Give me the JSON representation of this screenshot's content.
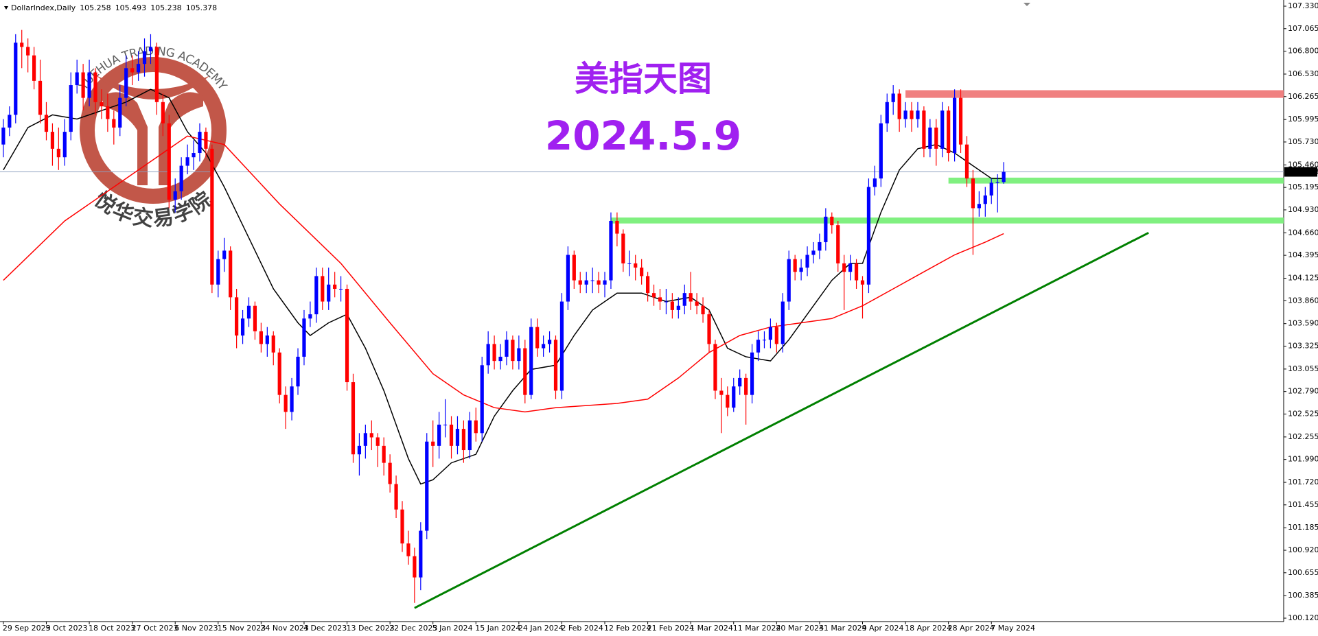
{
  "chart_data": {
    "type": "candlestick",
    "symbol": "DollarIndex,Daily",
    "title": "美指天图",
    "subtitle": "2024.5.9",
    "watermark": {
      "top": "YUEHUA TRADING ACADEMY",
      "bottom": "悦华交易学院"
    },
    "up_color": "#0000ff",
    "down_color": "#ff0000",
    "categories": [
      "29 Sep 2023",
      null,
      null,
      null,
      null,
      null,
      null,
      "9 Oct 2023",
      null,
      null,
      null,
      null,
      null,
      null,
      "18 Oct 2023",
      null,
      null,
      null,
      null,
      null,
      null,
      "27 Oct 2023",
      null,
      null,
      null,
      null,
      null,
      null,
      "6 Nov 2023",
      null,
      null,
      null,
      null,
      null,
      null,
      "15 Nov 2023",
      null,
      null,
      null,
      null,
      null,
      null,
      "24 Nov 2023",
      null,
      null,
      null,
      null,
      null,
      null,
      "4 Dec 2023",
      null,
      null,
      null,
      null,
      null,
      null,
      "13 Dec 2023",
      null,
      null,
      null,
      null,
      null,
      null,
      "22 Dec 2023",
      null,
      null,
      null,
      null,
      null,
      null,
      "5 Jan 2024",
      null,
      null,
      null,
      null,
      null,
      null,
      "15 Jan 2024",
      null,
      null,
      null,
      null,
      null,
      null,
      "24 Jan 2024",
      null,
      null,
      null,
      null,
      null,
      null,
      "2 Feb 2024",
      null,
      null,
      null,
      null,
      null,
      null,
      "12 Feb 2024",
      null,
      null,
      null,
      null,
      null,
      null,
      "21 Feb 2024",
      null,
      null,
      null,
      null,
      null,
      null,
      "1 Mar 2024",
      null,
      null,
      null,
      null,
      null,
      null,
      "11 Mar 2024",
      null,
      null,
      null,
      null,
      null,
      null,
      "20 Mar 2024",
      null,
      null,
      null,
      null,
      null,
      null,
      "31 Mar 2024",
      null,
      null,
      null,
      null,
      null,
      null,
      "9 Apr 2024",
      null,
      null,
      null,
      null,
      null,
      null,
      "18 Apr 2024",
      null,
      null,
      null,
      null,
      null,
      null,
      "28 Apr 2024",
      null,
      null,
      null,
      null,
      null,
      null,
      "7 May 2024",
      null,
      null
    ],
    "ohlc": [
      [
        105.7,
        106.0,
        105.55,
        105.9
      ],
      [
        105.9,
        106.15,
        105.8,
        106.05
      ],
      [
        106.05,
        107.0,
        105.95,
        106.9
      ],
      [
        106.9,
        107.05,
        106.6,
        106.85
      ],
      [
        106.85,
        106.95,
        106.55,
        106.75
      ],
      [
        106.75,
        106.85,
        106.35,
        106.45
      ],
      [
        106.45,
        106.7,
        105.95,
        106.05
      ],
      [
        106.05,
        106.2,
        105.75,
        105.85
      ],
      [
        105.85,
        105.95,
        105.45,
        105.65
      ],
      [
        105.65,
        105.9,
        105.4,
        105.55
      ],
      [
        105.55,
        106.0,
        105.45,
        105.85
      ],
      [
        105.85,
        106.55,
        105.75,
        106.4
      ],
      [
        106.4,
        106.7,
        106.3,
        106.55
      ],
      [
        106.55,
        106.65,
        106.1,
        106.25
      ],
      [
        106.25,
        106.7,
        106.15,
        106.55
      ],
      [
        106.55,
        106.6,
        106.05,
        106.2
      ],
      [
        106.2,
        106.35,
        106.0,
        106.15
      ],
      [
        106.15,
        106.3,
        105.85,
        106.0
      ],
      [
        106.0,
        106.1,
        105.7,
        105.9
      ],
      [
        105.9,
        106.4,
        105.8,
        106.25
      ],
      [
        106.25,
        106.75,
        106.15,
        106.6
      ],
      [
        106.6,
        106.75,
        106.4,
        106.55
      ],
      [
        106.55,
        106.8,
        106.45,
        106.65
      ],
      [
        106.65,
        106.95,
        106.5,
        106.8
      ],
      [
        106.8,
        107.0,
        106.65,
        106.85
      ],
      [
        106.85,
        106.9,
        106.05,
        106.2
      ],
      [
        106.2,
        106.3,
        105.8,
        105.95
      ],
      [
        105.95,
        106.05,
        104.95,
        105.05
      ],
      [
        105.05,
        105.3,
        104.9,
        105.15
      ],
      [
        105.15,
        105.55,
        105.05,
        105.45
      ],
      [
        105.45,
        105.7,
        105.35,
        105.55
      ],
      [
        105.55,
        105.75,
        105.4,
        105.6
      ],
      [
        105.6,
        105.95,
        105.5,
        105.85
      ],
      [
        105.85,
        105.9,
        105.55,
        105.65
      ],
      [
        105.65,
        105.7,
        103.95,
        104.05
      ],
      [
        104.05,
        104.45,
        103.9,
        104.35
      ],
      [
        104.35,
        104.6,
        104.2,
        104.45
      ],
      [
        104.45,
        104.5,
        103.75,
        103.9
      ],
      [
        103.9,
        104.0,
        103.3,
        103.45
      ],
      [
        103.45,
        103.75,
        103.35,
        103.65
      ],
      [
        103.65,
        103.9,
        103.55,
        103.8
      ],
      [
        103.8,
        103.85,
        103.4,
        103.5
      ],
      [
        103.5,
        103.6,
        103.25,
        103.35
      ],
      [
        103.35,
        103.55,
        103.2,
        103.45
      ],
      [
        103.45,
        103.5,
        103.1,
        103.25
      ],
      [
        103.25,
        103.3,
        102.65,
        102.75
      ],
      [
        102.75,
        102.85,
        102.35,
        102.55
      ],
      [
        102.55,
        102.95,
        102.45,
        102.85
      ],
      [
        102.85,
        103.3,
        102.75,
        103.2
      ],
      [
        103.2,
        103.75,
        103.1,
        103.65
      ],
      [
        103.65,
        103.85,
        103.55,
        103.7
      ],
      [
        103.7,
        104.25,
        103.6,
        104.15
      ],
      [
        104.15,
        104.25,
        103.75,
        103.85
      ],
      [
        103.85,
        104.25,
        103.75,
        104.05
      ],
      [
        104.05,
        104.2,
        103.9,
        104.0
      ],
      [
        104.0,
        104.15,
        103.85,
        104.0
      ],
      [
        104.0,
        104.05,
        102.8,
        102.9
      ],
      [
        102.9,
        103.0,
        101.95,
        102.05
      ],
      [
        102.05,
        102.3,
        101.8,
        102.15
      ],
      [
        102.15,
        102.4,
        102.0,
        102.3
      ],
      [
        102.3,
        102.45,
        102.1,
        102.25
      ],
      [
        102.25,
        102.3,
        101.9,
        102.15
      ],
      [
        102.15,
        102.25,
        101.8,
        101.95
      ],
      [
        101.95,
        102.05,
        101.6,
        101.7
      ],
      [
        101.7,
        101.8,
        101.3,
        101.4
      ],
      [
        101.4,
        101.5,
        100.9,
        101.0
      ],
      [
        101.0,
        101.15,
        100.75,
        100.85
      ],
      [
        100.85,
        100.95,
        100.3,
        100.6
      ],
      [
        100.6,
        101.25,
        100.45,
        101.15
      ],
      [
        101.15,
        102.3,
        101.05,
        102.2
      ],
      [
        102.2,
        102.45,
        101.9,
        102.15
      ],
      [
        102.15,
        102.55,
        102.0,
        102.4
      ],
      [
        102.4,
        102.7,
        102.25,
        102.4
      ],
      [
        102.4,
        102.5,
        102.0,
        102.15
      ],
      [
        102.15,
        102.5,
        102.05,
        102.35
      ],
      [
        102.35,
        102.45,
        101.95,
        102.1
      ],
      [
        102.1,
        102.55,
        102.0,
        102.45
      ],
      [
        102.45,
        102.6,
        102.2,
        102.3
      ],
      [
        102.3,
        103.2,
        102.2,
        103.1
      ],
      [
        103.1,
        103.5,
        103.0,
        103.35
      ],
      [
        103.35,
        103.45,
        103.05,
        103.15
      ],
      [
        103.15,
        103.35,
        103.05,
        103.2
      ],
      [
        103.2,
        103.5,
        103.1,
        103.4
      ],
      [
        103.4,
        103.45,
        103.05,
        103.15
      ],
      [
        103.15,
        103.45,
        103.05,
        103.3
      ],
      [
        103.3,
        103.4,
        102.65,
        102.75
      ],
      [
        102.75,
        103.65,
        102.7,
        103.55
      ],
      [
        103.55,
        103.65,
        103.2,
        103.3
      ],
      [
        103.3,
        103.45,
        103.2,
        103.35
      ],
      [
        103.35,
        103.5,
        103.25,
        103.4
      ],
      [
        103.4,
        103.45,
        102.7,
        102.8
      ],
      [
        102.8,
        103.95,
        102.7,
        103.85
      ],
      [
        103.85,
        104.5,
        103.75,
        104.4
      ],
      [
        104.4,
        104.45,
        104.0,
        104.1
      ],
      [
        104.1,
        104.2,
        103.95,
        104.05
      ],
      [
        104.05,
        104.2,
        103.95,
        104.1
      ],
      [
        104.1,
        104.25,
        103.95,
        104.1
      ],
      [
        104.1,
        104.2,
        103.95,
        104.05
      ],
      [
        104.05,
        104.2,
        103.9,
        104.1
      ],
      [
        104.1,
        104.9,
        104.0,
        104.8
      ],
      [
        104.8,
        104.9,
        104.5,
        104.65
      ],
      [
        104.65,
        104.7,
        104.2,
        104.3
      ],
      [
        104.3,
        104.45,
        104.15,
        104.3
      ],
      [
        104.3,
        104.4,
        104.1,
        104.25
      ],
      [
        104.25,
        104.35,
        104.05,
        104.15
      ],
      [
        104.15,
        104.2,
        103.85,
        103.95
      ],
      [
        103.95,
        104.05,
        103.8,
        103.9
      ],
      [
        103.9,
        104.0,
        103.75,
        103.85
      ],
      [
        103.85,
        104.0,
        103.7,
        103.85
      ],
      [
        103.85,
        103.95,
        103.65,
        103.75
      ],
      [
        103.75,
        103.9,
        103.65,
        103.8
      ],
      [
        103.8,
        104.05,
        103.7,
        103.95
      ],
      [
        103.95,
        104.2,
        103.75,
        103.85
      ],
      [
        103.85,
        103.95,
        103.7,
        103.8
      ],
      [
        103.8,
        103.9,
        103.6,
        103.7
      ],
      [
        103.7,
        103.75,
        103.25,
        103.35
      ],
      [
        103.35,
        103.4,
        102.7,
        102.8
      ],
      [
        102.8,
        102.95,
        102.3,
        102.75
      ],
      [
        102.75,
        102.85,
        102.5,
        102.6
      ],
      [
        102.6,
        102.95,
        102.55,
        102.85
      ],
      [
        102.85,
        103.05,
        102.75,
        102.95
      ],
      [
        102.95,
        103.0,
        102.4,
        102.75
      ],
      [
        102.75,
        103.35,
        102.65,
        103.25
      ],
      [
        103.25,
        103.5,
        103.15,
        103.4
      ],
      [
        103.4,
        103.5,
        103.3,
        103.4
      ],
      [
        103.4,
        103.65,
        103.3,
        103.55
      ],
      [
        103.55,
        103.6,
        103.25,
        103.35
      ],
      [
        103.35,
        103.95,
        103.25,
        103.85
      ],
      [
        103.85,
        104.45,
        103.75,
        104.35
      ],
      [
        104.35,
        104.4,
        104.1,
        104.2
      ],
      [
        104.2,
        104.35,
        104.1,
        104.25
      ],
      [
        104.25,
        104.5,
        104.15,
        104.4
      ],
      [
        104.4,
        104.55,
        104.3,
        104.45
      ],
      [
        104.45,
        104.65,
        104.35,
        104.55
      ],
      [
        104.55,
        104.95,
        104.45,
        104.85
      ],
      [
        104.85,
        104.9,
        104.65,
        104.75
      ],
      [
        104.75,
        104.8,
        104.2,
        104.3
      ],
      [
        104.3,
        104.4,
        103.75,
        104.2
      ],
      [
        104.2,
        104.4,
        104.1,
        104.3
      ],
      [
        104.3,
        104.35,
        104.0,
        104.1
      ],
      [
        104.1,
        104.15,
        103.65,
        104.05
      ],
      [
        104.05,
        105.3,
        103.95,
        105.2
      ],
      [
        105.2,
        105.45,
        105.1,
        105.3
      ],
      [
        105.3,
        106.05,
        105.2,
        105.95
      ],
      [
        105.95,
        106.3,
        105.85,
        106.2
      ],
      [
        106.2,
        106.4,
        106.05,
        106.3
      ],
      [
        106.3,
        106.35,
        105.85,
        106.0
      ],
      [
        106.0,
        106.2,
        105.9,
        106.1
      ],
      [
        106.1,
        106.2,
        105.85,
        106.0
      ],
      [
        106.0,
        106.2,
        105.9,
        106.1
      ],
      [
        106.1,
        106.15,
        105.55,
        105.65
      ],
      [
        105.65,
        106.0,
        105.55,
        105.9
      ],
      [
        105.9,
        106.0,
        105.45,
        105.65
      ],
      [
        105.65,
        106.2,
        105.55,
        106.1
      ],
      [
        106.1,
        106.15,
        105.5,
        105.6
      ],
      [
        105.6,
        106.35,
        105.5,
        106.25
      ],
      [
        106.25,
        106.35,
        105.6,
        105.7
      ],
      [
        105.7,
        105.8,
        105.2,
        105.3
      ],
      [
        105.3,
        105.4,
        104.4,
        104.95
      ],
      [
        104.95,
        105.15,
        104.85,
        105.0
      ],
      [
        105.0,
        105.2,
        104.85,
        105.1
      ],
      [
        105.1,
        105.3,
        105.0,
        105.25
      ],
      [
        105.25,
        105.35,
        104.9,
        105.26
      ],
      [
        105.258,
        105.493,
        105.238,
        105.378
      ]
    ],
    "series": [
      {
        "color": "#000000",
        "x": [
          0,
          4,
          8,
          12,
          16,
          20,
          24,
          27,
          30,
          33,
          36,
          40,
          44,
          48,
          50,
          53,
          56,
          59,
          62,
          66,
          68,
          70,
          73,
          77,
          80,
          83,
          86,
          90,
          93,
          96,
          100,
          104,
          108,
          112,
          115,
          118,
          121,
          125,
          128,
          131,
          135,
          138,
          140,
          143,
          146,
          149,
          152,
          155,
          158,
          161,
          163
        ],
        "values": [
          105.4,
          105.9,
          106.05,
          106.0,
          106.1,
          106.2,
          106.35,
          106.25,
          105.85,
          105.6,
          105.2,
          104.6,
          104.0,
          103.6,
          103.45,
          103.6,
          103.7,
          103.3,
          102.8,
          102.0,
          101.7,
          101.75,
          101.95,
          102.05,
          102.5,
          102.8,
          103.05,
          103.1,
          103.45,
          103.75,
          103.95,
          103.95,
          103.85,
          103.9,
          103.75,
          103.3,
          103.2,
          103.15,
          103.4,
          103.7,
          104.1,
          104.3,
          104.3,
          104.9,
          105.4,
          105.65,
          105.7,
          105.6,
          105.45,
          105.3,
          105.3
        ]
      },
      {
        "color": "#ff0000",
        "x": [
          0,
          10,
          20,
          30,
          36,
          45,
          55,
          63,
          70,
          75,
          80,
          85,
          90,
          100,
          105,
          110,
          115,
          120,
          125,
          130,
          135,
          140,
          145,
          150,
          155,
          160,
          163
        ],
        "values": [
          104.1,
          104.8,
          105.3,
          105.8,
          105.7,
          105.0,
          104.3,
          103.6,
          103.0,
          102.75,
          102.6,
          102.55,
          102.6,
          102.65,
          102.7,
          102.95,
          103.25,
          103.45,
          103.55,
          103.6,
          103.65,
          103.8,
          104.0,
          104.2,
          104.4,
          104.55,
          104.65
        ]
      }
    ],
    "levels": [
      {
        "values": [
          106.25,
          106.34
        ],
        "start": 147,
        "color": "#f08080"
      },
      {
        "values": [
          104.77,
          104.84
        ],
        "start": 99,
        "color": "#80f080"
      },
      {
        "values": [
          105.24,
          105.31
        ],
        "start": 154,
        "color": "#80f080"
      }
    ],
    "trendline": {
      "x": [
        67,
        186.6
      ],
      "values": [
        100.24,
        104.66
      ],
      "color": "#008000"
    },
    "last_price": 105.378,
    "ylim": [
      100.12,
      107.33
    ],
    "yticks": [
      {
        "value": 107.33,
        "label": "107.330"
      },
      107.065,
      {
        "value": 106.8,
        "label": "106.800"
      },
      {
        "value": 106.53,
        "label": "106.530"
      },
      106.265,
      105.995,
      {
        "value": 105.73,
        "label": "105.730"
      },
      {
        "value": 105.46,
        "label": "105.460"
      },
      105.195,
      {
        "value": 104.93,
        "label": "104.930"
      },
      {
        "value": 104.66,
        "label": "104.660"
      },
      104.395,
      104.125,
      {
        "value": 103.86,
        "label": "103.860"
      },
      {
        "value": 103.59,
        "label": "103.590"
      },
      103.325,
      103.055,
      {
        "value": 102.79,
        "label": "102.790"
      },
      102.525,
      102.255,
      {
        "value": 101.99,
        "label": "101.990"
      },
      {
        "value": 101.72,
        "label": "101.720"
      },
      101.455,
      101.185,
      {
        "value": 100.92,
        "label": "100.920"
      },
      100.655,
      100.385,
      {
        "value": 100.12,
        "label": "100.120"
      }
    ]
  }
}
